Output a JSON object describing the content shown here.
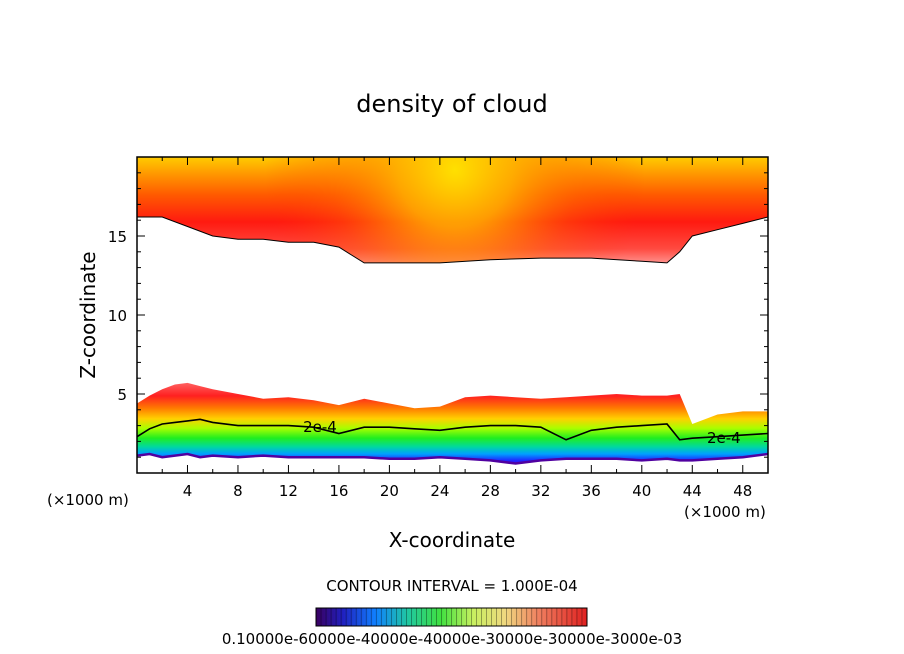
{
  "chart_data": {
    "type": "contour",
    "title": "density of cloud",
    "xlabel": "X-coordinate",
    "ylabel": "Z-coordinate",
    "x_unit": "(×1000 m)",
    "xlim": [
      0,
      50
    ],
    "ylim": [
      0,
      20
    ],
    "x_ticks": [
      4,
      8,
      12,
      16,
      20,
      24,
      28,
      32,
      36,
      40,
      44,
      48
    ],
    "y_ticks": [
      5,
      10,
      15
    ],
    "contour_label": "2e-4",
    "contour_interval_text": "CONTOUR INTERVAL = 1.000E-04",
    "colorbar_labels_text": "0.10000e-60000e-40000e-40000e-30000e-30000e-3000e-03",
    "layers": [
      {
        "name": "upper cloud",
        "x": [
          0,
          2,
          4,
          6,
          8,
          10,
          12,
          14,
          16,
          17,
          18,
          20,
          24,
          28,
          32,
          36,
          40,
          42,
          43,
          44,
          46,
          48,
          50
        ],
        "base": [
          16.2,
          16.2,
          15.6,
          15.0,
          14.8,
          14.8,
          14.6,
          14.6,
          14.3,
          13.8,
          13.3,
          13.3,
          13.3,
          13.5,
          13.6,
          13.6,
          13.4,
          13.3,
          14.0,
          15.0,
          15.4,
          15.8,
          16.2
        ],
        "top": 20,
        "peak_x": 25.5,
        "peak_z": 18.8
      },
      {
        "name": "lower cloud",
        "x": [
          0,
          1,
          2,
          3,
          4,
          5,
          6,
          8,
          10,
          12,
          14,
          16,
          18,
          20,
          22,
          24,
          26,
          28,
          30,
          32,
          34,
          36,
          38,
          40,
          42,
          43,
          44,
          46,
          48,
          50
        ],
        "top": [
          4.4,
          4.9,
          5.3,
          5.6,
          5.7,
          5.5,
          5.3,
          5.0,
          4.7,
          4.8,
          4.6,
          4.3,
          4.7,
          4.4,
          4.1,
          4.2,
          4.8,
          4.9,
          4.8,
          4.7,
          4.8,
          4.9,
          5.0,
          4.9,
          4.9,
          5.0,
          3.1,
          3.7,
          3.9,
          3.9
        ],
        "contour_2e4": [
          2.3,
          2.8,
          3.1,
          3.2,
          3.3,
          3.4,
          3.2,
          3.0,
          3.0,
          3.0,
          2.9,
          2.5,
          2.9,
          2.9,
          2.8,
          2.7,
          2.9,
          3.0,
          3.0,
          2.9,
          2.1,
          2.7,
          2.9,
          3.0,
          3.1,
          2.1,
          2.2,
          2.3,
          2.4,
          2.5
        ],
        "bottom": [
          1.1,
          1.2,
          1.0,
          1.1,
          1.2,
          1.0,
          1.1,
          1.0,
          1.1,
          1.0,
          1.0,
          1.0,
          1.0,
          0.9,
          0.9,
          1.0,
          0.9,
          0.8,
          0.6,
          0.8,
          0.9,
          0.9,
          0.9,
          0.8,
          0.9,
          0.8,
          0.8,
          0.9,
          1.0,
          1.2
        ]
      }
    ]
  }
}
